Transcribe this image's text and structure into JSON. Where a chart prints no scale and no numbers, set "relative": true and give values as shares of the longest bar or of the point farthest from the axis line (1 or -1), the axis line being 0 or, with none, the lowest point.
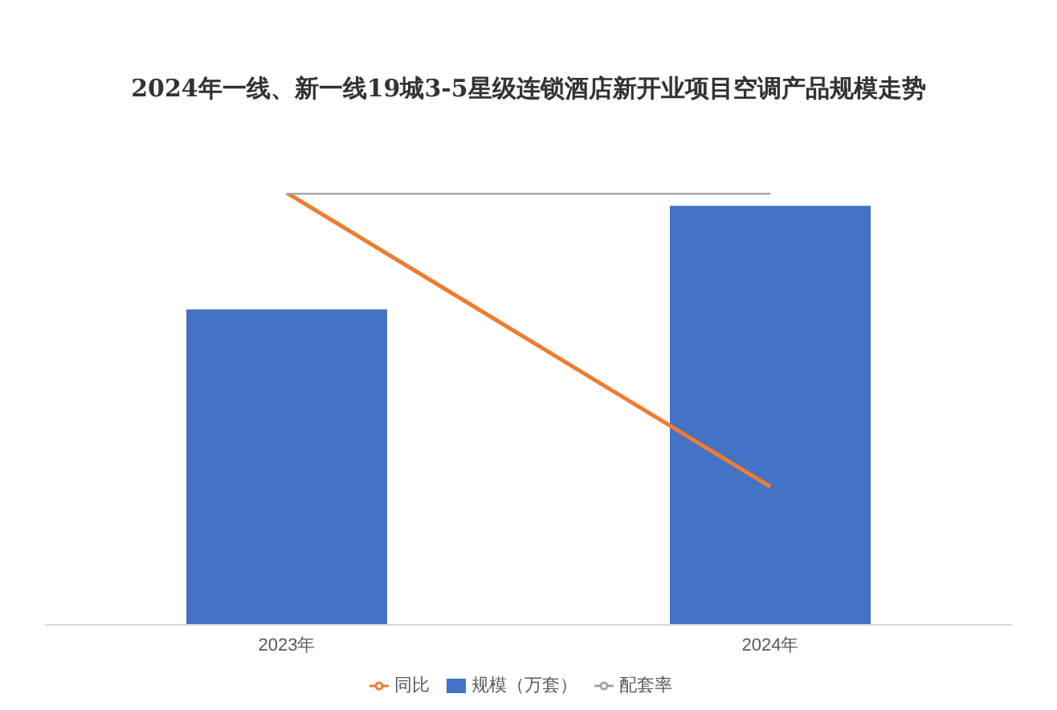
{
  "chart_data": {
    "type": "bar",
    "title": "2024年一线、新一线19城3-5星级连锁酒店新开业项目空调产品规模走势",
    "categories": [
      "2023年",
      "2024年"
    ],
    "relative": true,
    "legend": "bottom",
    "grid": false,
    "marker": "none",
    "series": [
      {
        "name": "规模（万套）",
        "color": "#4472c4",
        "values": [
          0.73,
          0.97
        ]
      },
      {
        "name": "同比",
        "type": "line",
        "color": "#ed7d31",
        "values": [
          1,
          0.32
        ]
      },
      {
        "name": "配套率",
        "type": "line",
        "color": "#a5a5a5",
        "values": [
          1,
          1
        ]
      }
    ]
  }
}
